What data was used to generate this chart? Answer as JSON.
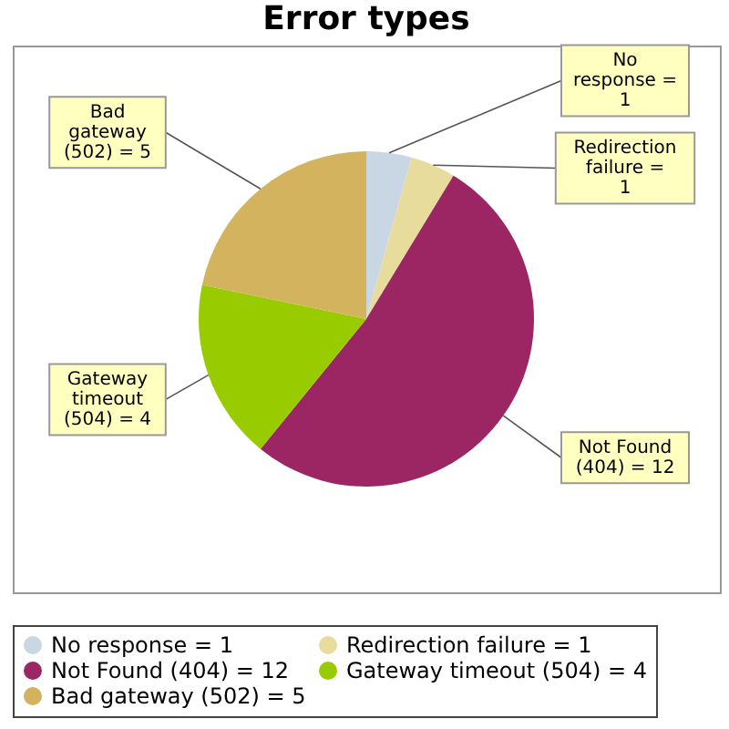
{
  "chart_data": {
    "type": "pie",
    "title": "Error types",
    "categories": [
      "No response = 1",
      "Redirection failure = 1",
      "Not Found (404) = 12",
      "Gateway timeout (504) = 4",
      "Bad gateway (502) = 5"
    ],
    "values": [
      1,
      1,
      12,
      4,
      5
    ],
    "colors": [
      "#c9d6e3",
      "#e8dc9c",
      "#9c2563",
      "#99cc00",
      "#d4b35f"
    ],
    "legend": "bottom"
  }
}
